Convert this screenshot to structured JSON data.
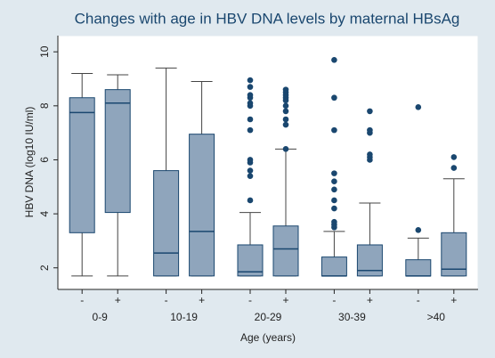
{
  "chart_data": {
    "type": "box",
    "title": "Changes with age in HBV DNA levels by maternal HBsAg",
    "x_label": "Age (years)",
    "y_label": "HBV DNA (log10 IU/ml)",
    "categories": [
      "0-9",
      "10-19",
      "20-29",
      "30-39",
      ">40"
    ],
    "box_color": "#8fa5bc",
    "line_color": "#1a476f",
    "ylim": [
      1.2,
      10.6
    ],
    "yticks": [
      2,
      4,
      6,
      8,
      10
    ],
    "boxes": [
      {
        "label": "-",
        "whisker_low": 1.7,
        "q1": 3.3,
        "median": 7.75,
        "q3": 8.3,
        "whisker_high": 9.2,
        "outliers": []
      },
      {
        "label": "+",
        "whisker_low": 1.7,
        "q1": 4.05,
        "median": 8.1,
        "q3": 8.6,
        "whisker_high": 9.15,
        "outliers": []
      },
      {
        "label": "-",
        "whisker_low": 1.7,
        "q1": 1.7,
        "median": 2.55,
        "q3": 5.6,
        "whisker_high": 9.4,
        "outliers": []
      },
      {
        "label": "+",
        "whisker_low": 1.7,
        "q1": 1.7,
        "median": 3.35,
        "q3": 6.95,
        "whisker_high": 8.9,
        "outliers": []
      },
      {
        "label": "-",
        "whisker_low": 1.7,
        "q1": 1.7,
        "median": 1.85,
        "q3": 2.85,
        "whisker_high": 4.05,
        "outliers": [
          4.5,
          5.4,
          5.6,
          5.9,
          6.0,
          7.1,
          7.5,
          8.0,
          8.1,
          8.3,
          8.4,
          8.7,
          8.95
        ]
      },
      {
        "label": "+",
        "whisker_low": 1.7,
        "q1": 1.7,
        "median": 2.7,
        "q3": 3.55,
        "whisker_high": 6.4,
        "outliers": [
          6.4,
          7.3,
          7.5,
          7.8,
          8.0,
          8.2,
          8.3,
          8.4,
          8.5,
          8.6
        ]
      },
      {
        "label": "-",
        "whisker_low": 1.7,
        "q1": 1.7,
        "median": 1.7,
        "q3": 2.4,
        "whisker_high": 3.35,
        "outliers": [
          3.5,
          3.6,
          3.7,
          4.2,
          4.5,
          4.9,
          5.2,
          5.5,
          7.1,
          8.3,
          9.7
        ]
      },
      {
        "label": "+",
        "whisker_low": 1.7,
        "q1": 1.7,
        "median": 1.9,
        "q3": 2.85,
        "whisker_high": 4.4,
        "outliers": [
          6.0,
          6.1,
          6.2,
          7.0,
          7.1,
          7.8
        ]
      },
      {
        "label": "-",
        "whisker_low": 1.7,
        "q1": 1.7,
        "median": 1.7,
        "q3": 2.3,
        "whisker_high": 3.1,
        "outliers": [
          3.4,
          7.95
        ]
      },
      {
        "label": "+",
        "whisker_low": 1.7,
        "q1": 1.7,
        "median": 1.95,
        "q3": 3.3,
        "whisker_high": 5.3,
        "outliers": [
          5.7,
          6.1
        ]
      }
    ]
  }
}
